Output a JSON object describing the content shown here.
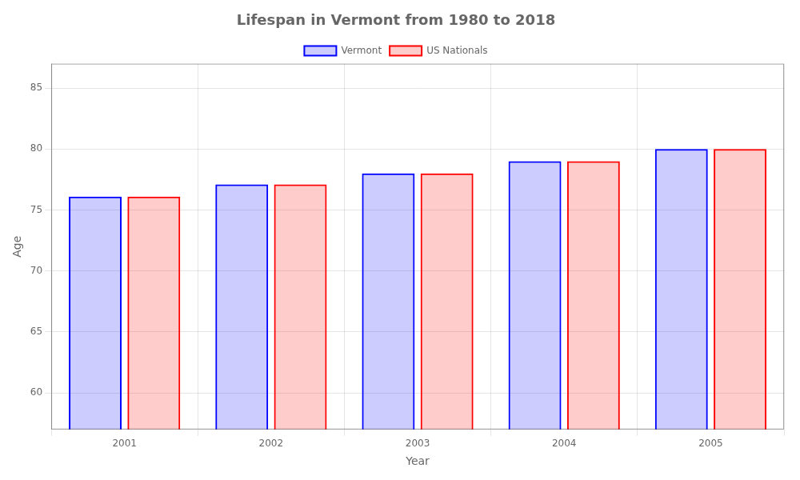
{
  "chart_data": {
    "type": "bar",
    "title": "Lifespan in Vermont from 1980 to 2018",
    "xlabel": "Year",
    "ylabel": "Age",
    "categories": [
      "2001",
      "2002",
      "2003",
      "2004",
      "2005"
    ],
    "series": [
      {
        "name": "Vermont",
        "color": "#0000ff",
        "values": [
          76.1,
          77.1,
          78.0,
          79.0,
          80.0
        ]
      },
      {
        "name": "US Nationals",
        "color": "#ff0000",
        "values": [
          76.1,
          77.1,
          78.0,
          79.0,
          80.0
        ]
      }
    ],
    "ylim": [
      57,
      87
    ],
    "yticks": [
      60,
      65,
      70,
      75,
      80,
      85
    ],
    "grid": true,
    "legend": "top"
  }
}
